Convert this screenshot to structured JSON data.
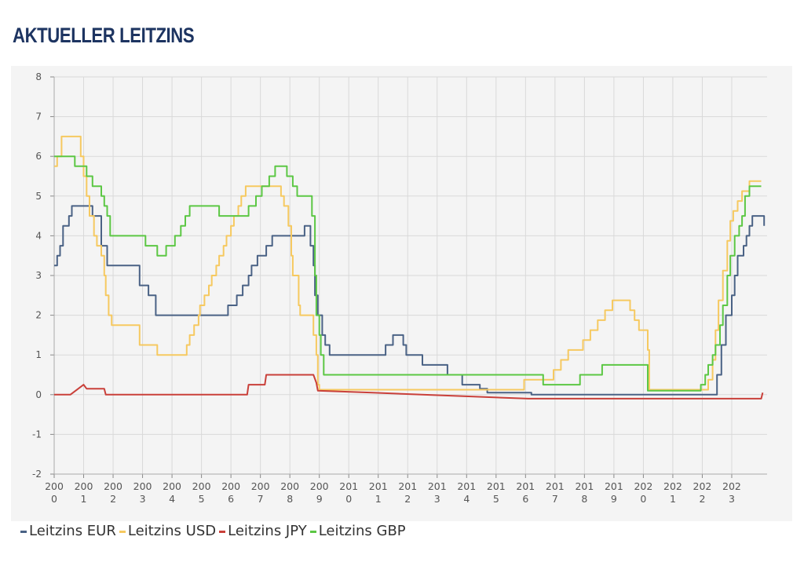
{
  "page": {
    "title": "AKTUELLER LEITZINS"
  },
  "chart_data": {
    "type": "line",
    "title": "",
    "xlabel": "",
    "ylabel": "",
    "ylim": [
      -2,
      8
    ],
    "xlim": [
      2000.0,
      2024.2
    ],
    "y_ticks": [
      "8",
      "7",
      "6",
      "5",
      "4",
      "3",
      "2",
      "1",
      "0",
      "-1",
      "-2"
    ],
    "x_ticks": [
      {
        "line1": "200",
        "line2": "0",
        "year": 2000
      },
      {
        "line1": "200",
        "line2": "1",
        "year": 2001
      },
      {
        "line1": "200",
        "line2": "2",
        "year": 2002
      },
      {
        "line1": "200",
        "line2": "3",
        "year": 2003
      },
      {
        "line1": "200",
        "line2": "4",
        "year": 2004
      },
      {
        "line1": "200",
        "line2": "5",
        "year": 2005
      },
      {
        "line1": "200",
        "line2": "6",
        "year": 2006
      },
      {
        "line1": "200",
        "line2": "7",
        "year": 2007
      },
      {
        "line1": "200",
        "line2": "8",
        "year": 2008
      },
      {
        "line1": "200",
        "line2": "9",
        "year": 2009
      },
      {
        "line1": "201",
        "line2": "0",
        "year": 2010
      },
      {
        "line1": "201",
        "line2": "1",
        "year": 2011
      },
      {
        "line1": "201",
        "line2": "2",
        "year": 2012
      },
      {
        "line1": "201",
        "line2": "3",
        "year": 2013
      },
      {
        "line1": "201",
        "line2": "4",
        "year": 2014
      },
      {
        "line1": "201",
        "line2": "5",
        "year": 2015
      },
      {
        "line1": "201",
        "line2": "6",
        "year": 2016
      },
      {
        "line1": "201",
        "line2": "7",
        "year": 2017
      },
      {
        "line1": "201",
        "line2": "8",
        "year": 2018
      },
      {
        "line1": "201",
        "line2": "9",
        "year": 2019
      },
      {
        "line1": "202",
        "line2": "0",
        "year": 2020
      },
      {
        "line1": "202",
        "line2": "1",
        "year": 2021
      },
      {
        "line1": "202",
        "line2": "2",
        "year": 2022
      },
      {
        "line1": "202",
        "line2": "3",
        "year": 2023
      }
    ],
    "grid": true,
    "legend_position": "bottom-left",
    "series": [
      {
        "name": "Leitzins EUR",
        "color": "#4a6285",
        "step": true,
        "points": [
          [
            2000.0,
            3.25
          ],
          [
            2000.1,
            3.5
          ],
          [
            2000.2,
            3.75
          ],
          [
            2000.3,
            4.25
          ],
          [
            2000.5,
            4.5
          ],
          [
            2000.6,
            4.75
          ],
          [
            2001.3,
            4.5
          ],
          [
            2001.6,
            3.75
          ],
          [
            2001.8,
            3.25
          ],
          [
            2002.9,
            2.75
          ],
          [
            2003.2,
            2.5
          ],
          [
            2003.45,
            2.0
          ],
          [
            2005.9,
            2.25
          ],
          [
            2006.2,
            2.5
          ],
          [
            2006.4,
            2.75
          ],
          [
            2006.6,
            3.0
          ],
          [
            2006.7,
            3.25
          ],
          [
            2006.9,
            3.5
          ],
          [
            2007.2,
            3.75
          ],
          [
            2007.4,
            4.0
          ],
          [
            2008.5,
            4.25
          ],
          [
            2008.7,
            3.75
          ],
          [
            2008.8,
            3.25
          ],
          [
            2008.85,
            2.5
          ],
          [
            2008.95,
            2.0
          ],
          [
            2009.1,
            1.5
          ],
          [
            2009.2,
            1.25
          ],
          [
            2009.35,
            1.0
          ],
          [
            2011.25,
            1.25
          ],
          [
            2011.5,
            1.5
          ],
          [
            2011.85,
            1.25
          ],
          [
            2011.95,
            1.0
          ],
          [
            2012.5,
            0.75
          ],
          [
            2013.35,
            0.5
          ],
          [
            2013.85,
            0.25
          ],
          [
            2014.45,
            0.15
          ],
          [
            2014.7,
            0.05
          ],
          [
            2016.2,
            0.0
          ],
          [
            2022.5,
            0.5
          ],
          [
            2022.65,
            1.25
          ],
          [
            2022.8,
            2.0
          ],
          [
            2023.0,
            2.5
          ],
          [
            2023.1,
            3.0
          ],
          [
            2023.2,
            3.5
          ],
          [
            2023.4,
            3.75
          ],
          [
            2023.5,
            4.0
          ],
          [
            2023.6,
            4.25
          ],
          [
            2023.7,
            4.5
          ],
          [
            2024.1,
            4.25
          ]
        ]
      },
      {
        "name": "Leitzins USD",
        "color": "#f6c960",
        "step": true,
        "points": [
          [
            2000.0,
            5.75
          ],
          [
            2000.1,
            6.0
          ],
          [
            2000.25,
            6.5
          ],
          [
            2000.9,
            6.0
          ],
          [
            2001.0,
            5.5
          ],
          [
            2001.1,
            5.0
          ],
          [
            2001.2,
            4.5
          ],
          [
            2001.35,
            4.0
          ],
          [
            2001.45,
            3.75
          ],
          [
            2001.6,
            3.5
          ],
          [
            2001.7,
            3.0
          ],
          [
            2001.75,
            2.5
          ],
          [
            2001.85,
            2.0
          ],
          [
            2001.95,
            1.75
          ],
          [
            2002.9,
            1.25
          ],
          [
            2003.5,
            1.0
          ],
          [
            2004.5,
            1.25
          ],
          [
            2004.6,
            1.5
          ],
          [
            2004.75,
            1.75
          ],
          [
            2004.9,
            2.0
          ],
          [
            2004.95,
            2.25
          ],
          [
            2005.1,
            2.5
          ],
          [
            2005.25,
            2.75
          ],
          [
            2005.35,
            3.0
          ],
          [
            2005.5,
            3.25
          ],
          [
            2005.6,
            3.5
          ],
          [
            2005.75,
            3.75
          ],
          [
            2005.85,
            4.0
          ],
          [
            2006.0,
            4.25
          ],
          [
            2006.1,
            4.5
          ],
          [
            2006.25,
            4.75
          ],
          [
            2006.35,
            5.0
          ],
          [
            2006.5,
            5.25
          ],
          [
            2007.7,
            5.0
          ],
          [
            2007.8,
            4.75
          ],
          [
            2007.95,
            4.25
          ],
          [
            2008.05,
            3.5
          ],
          [
            2008.1,
            3.0
          ],
          [
            2008.3,
            2.25
          ],
          [
            2008.35,
            2.0
          ],
          [
            2008.8,
            1.5
          ],
          [
            2008.9,
            1.0
          ],
          [
            2008.95,
            0.25
          ],
          [
            2009.0,
            0.125
          ],
          [
            2015.95,
            0.375
          ],
          [
            2016.95,
            0.625
          ],
          [
            2017.2,
            0.875
          ],
          [
            2017.45,
            1.125
          ],
          [
            2017.95,
            1.375
          ],
          [
            2018.2,
            1.625
          ],
          [
            2018.45,
            1.875
          ],
          [
            2018.7,
            2.125
          ],
          [
            2018.95,
            2.375
          ],
          [
            2019.55,
            2.125
          ],
          [
            2019.7,
            1.875
          ],
          [
            2019.85,
            1.625
          ],
          [
            2020.15,
            1.125
          ],
          [
            2020.2,
            0.125
          ],
          [
            2022.2,
            0.375
          ],
          [
            2022.35,
            0.875
          ],
          [
            2022.45,
            1.625
          ],
          [
            2022.55,
            2.375
          ],
          [
            2022.7,
            3.125
          ],
          [
            2022.85,
            3.875
          ],
          [
            2022.95,
            4.375
          ],
          [
            2023.05,
            4.625
          ],
          [
            2023.2,
            4.875
          ],
          [
            2023.35,
            5.125
          ],
          [
            2023.6,
            5.375
          ],
          [
            2024.0,
            5.375
          ]
        ]
      },
      {
        "name": "Leitzins JPY",
        "color": "#c9403a",
        "step": false,
        "points": [
          [
            2000.0,
            0.0
          ],
          [
            2000.55,
            0.0
          ],
          [
            2001.0,
            0.25
          ],
          [
            2001.1,
            0.15
          ],
          [
            2001.7,
            0.15
          ],
          [
            2001.75,
            0.0
          ],
          [
            2006.55,
            0.0
          ],
          [
            2006.6,
            0.25
          ],
          [
            2007.15,
            0.25
          ],
          [
            2007.2,
            0.5
          ],
          [
            2008.8,
            0.5
          ],
          [
            2008.9,
            0.3
          ],
          [
            2008.95,
            0.1
          ],
          [
            2010.8,
            0.05
          ],
          [
            2016.1,
            -0.1
          ],
          [
            2024.0,
            -0.1
          ],
          [
            2024.05,
            0.05
          ]
        ]
      },
      {
        "name": "Leitzins GBP",
        "color": "#5cc744",
        "step": true,
        "points": [
          [
            2000.0,
            6.0
          ],
          [
            2000.7,
            5.75
          ],
          [
            2001.1,
            5.5
          ],
          [
            2001.3,
            5.25
          ],
          [
            2001.6,
            5.0
          ],
          [
            2001.7,
            4.75
          ],
          [
            2001.8,
            4.5
          ],
          [
            2001.9,
            4.0
          ],
          [
            2003.1,
            3.75
          ],
          [
            2003.5,
            3.5
          ],
          [
            2003.8,
            3.75
          ],
          [
            2004.1,
            4.0
          ],
          [
            2004.3,
            4.25
          ],
          [
            2004.45,
            4.5
          ],
          [
            2004.6,
            4.75
          ],
          [
            2005.6,
            4.5
          ],
          [
            2006.6,
            4.75
          ],
          [
            2006.85,
            5.0
          ],
          [
            2007.05,
            5.25
          ],
          [
            2007.3,
            5.5
          ],
          [
            2007.5,
            5.75
          ],
          [
            2007.9,
            5.5
          ],
          [
            2008.1,
            5.25
          ],
          [
            2008.25,
            5.0
          ],
          [
            2008.75,
            4.5
          ],
          [
            2008.85,
            3.0
          ],
          [
            2008.9,
            2.0
          ],
          [
            2009.0,
            1.5
          ],
          [
            2009.05,
            1.0
          ],
          [
            2009.15,
            0.5
          ],
          [
            2016.6,
            0.25
          ],
          [
            2017.85,
            0.5
          ],
          [
            2018.6,
            0.75
          ],
          [
            2020.15,
            0.1
          ],
          [
            2021.95,
            0.25
          ],
          [
            2022.1,
            0.5
          ],
          [
            2022.2,
            0.75
          ],
          [
            2022.35,
            1.0
          ],
          [
            2022.45,
            1.25
          ],
          [
            2022.6,
            1.75
          ],
          [
            2022.7,
            2.25
          ],
          [
            2022.85,
            3.0
          ],
          [
            2022.95,
            3.5
          ],
          [
            2023.1,
            4.0
          ],
          [
            2023.25,
            4.25
          ],
          [
            2023.35,
            4.5
          ],
          [
            2023.45,
            5.0
          ],
          [
            2023.6,
            5.25
          ],
          [
            2024.0,
            5.25
          ]
        ]
      }
    ]
  }
}
